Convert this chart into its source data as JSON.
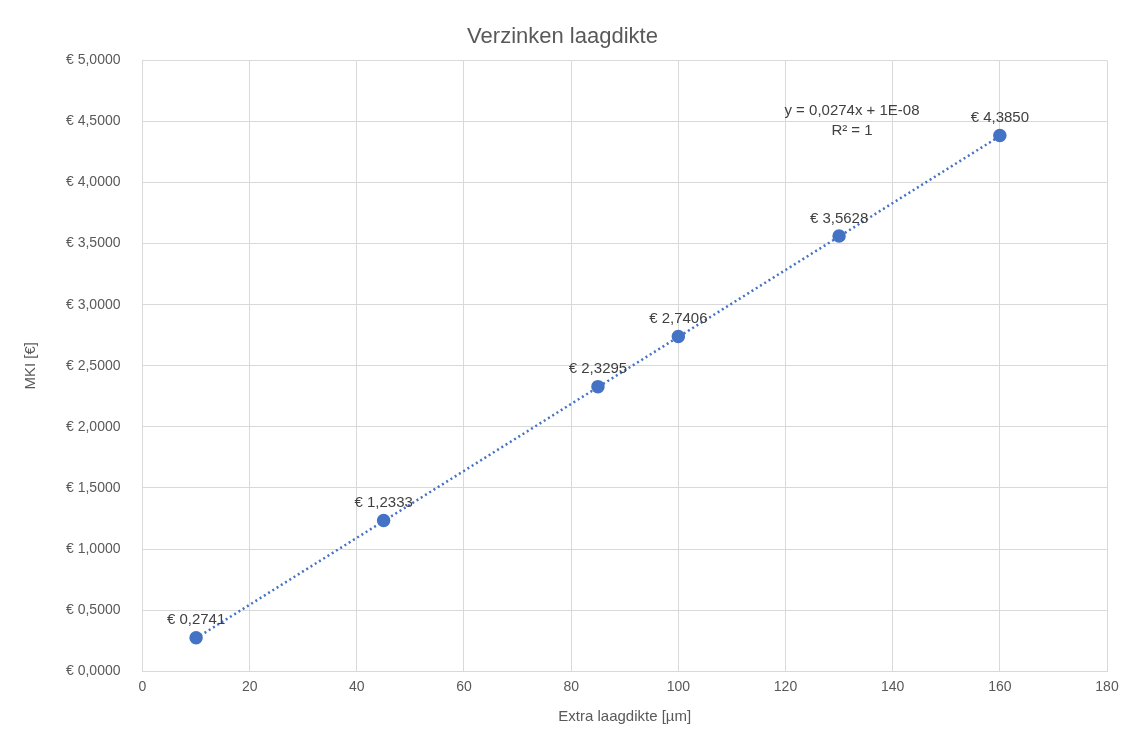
{
  "chart_data": {
    "type": "scatter",
    "title": "Verzinken laagdikte",
    "xlabel": "Extra laagdikte [µm]",
    "ylabel": "MKI [€]",
    "annotations": [
      "y = 0,0274x + 1E-08",
      "R² = 1"
    ],
    "series": [
      {
        "color": "#4472c4",
        "x": [
          10,
          45,
          85,
          100,
          130,
          160
        ],
        "values": [
          0.2741,
          1.2333,
          2.3295,
          2.7406,
          3.5628,
          4.385
        ],
        "value_labels": [
          "€ 0,2741",
          "€ 1,2333",
          "€ 2,3295",
          "€ 2,7406",
          "€ 3,5628",
          "€ 4,3850"
        ],
        "marker": "circle"
      },
      {
        "type": "line",
        "color": "#4472c4",
        "x": [
          10,
          160
        ],
        "values": [
          0.27,
          4.38
        ],
        "line_style": "dotted",
        "marker": "none"
      }
    ],
    "xlim": [
      0,
      180
    ],
    "xticks": [
      0,
      20,
      40,
      60,
      80,
      100,
      120,
      140,
      160,
      180
    ],
    "ylim": [
      0,
      5
    ],
    "yticks": [
      {
        "value": 0,
        "label": "€ 0,0000"
      },
      {
        "value": 0.5,
        "label": "€ 0,5000"
      },
      {
        "value": 1,
        "label": "€ 1,0000"
      },
      {
        "value": 1.5,
        "label": "€ 1,5000"
      },
      {
        "value": 2,
        "label": "€ 2,0000"
      },
      {
        "value": 2.5,
        "label": "€ 2,5000"
      },
      {
        "value": 3,
        "label": "€ 3,0000"
      },
      {
        "value": 3.5,
        "label": "€ 3,5000"
      },
      {
        "value": 4,
        "label": "€ 4,0000"
      },
      {
        "value": 4.5,
        "label": "€ 4,5000"
      },
      {
        "value": 5,
        "label": "€ 5,0000"
      }
    ],
    "grid": true,
    "legend": false
  }
}
